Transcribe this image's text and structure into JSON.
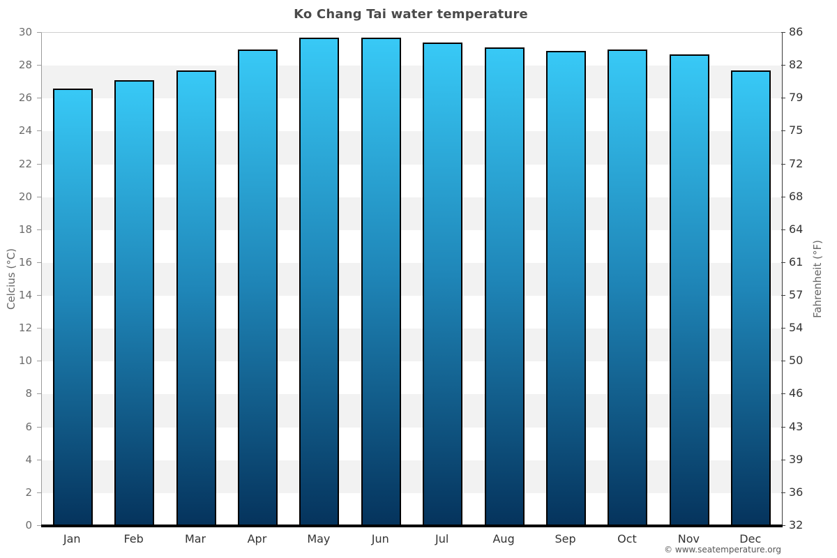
{
  "title": "Ko Chang Tai water temperature",
  "footer": {
    "credit": "© www.seatemperature.org"
  },
  "axes": {
    "left_label": "Celcius (°C)",
    "right_label": "Fahrenheit (°F)",
    "celsius_ticks": [
      30,
      28,
      26,
      24,
      22,
      20,
      18,
      16,
      14,
      12,
      10,
      8,
      6,
      4,
      2,
      0
    ],
    "fahrenheit_ticks": [
      86,
      82,
      79,
      75,
      72,
      68,
      64,
      61,
      57,
      54,
      50,
      46,
      43,
      39,
      36,
      32
    ]
  },
  "chart_data": {
    "type": "bar",
    "title": "Ko Chang Tai water temperature",
    "categories": [
      "Jan",
      "Feb",
      "Mar",
      "Apr",
      "May",
      "Jun",
      "Jul",
      "Aug",
      "Sep",
      "Oct",
      "Nov",
      "Dec"
    ],
    "values": [
      26.6,
      27.1,
      27.7,
      29.0,
      29.7,
      29.7,
      29.4,
      29.1,
      28.9,
      29.0,
      28.7,
      27.7
    ],
    "unit": "°C",
    "ylabel_left": "Celcius (°C)",
    "ylabel_right": "Fahrenheit (°F)",
    "ylim": [
      0,
      30
    ],
    "grid_band_step": 2,
    "band_color": "#f2f2f2",
    "plain_band_color": "#ffffff",
    "bar_gradient_top": "#38c9f6",
    "bar_gradient_mid": "#1f86b8",
    "bar_gradient_bottom": "#05335c",
    "bar_border_color": "#000000",
    "baseline_color": "#000000",
    "legend": "none"
  }
}
